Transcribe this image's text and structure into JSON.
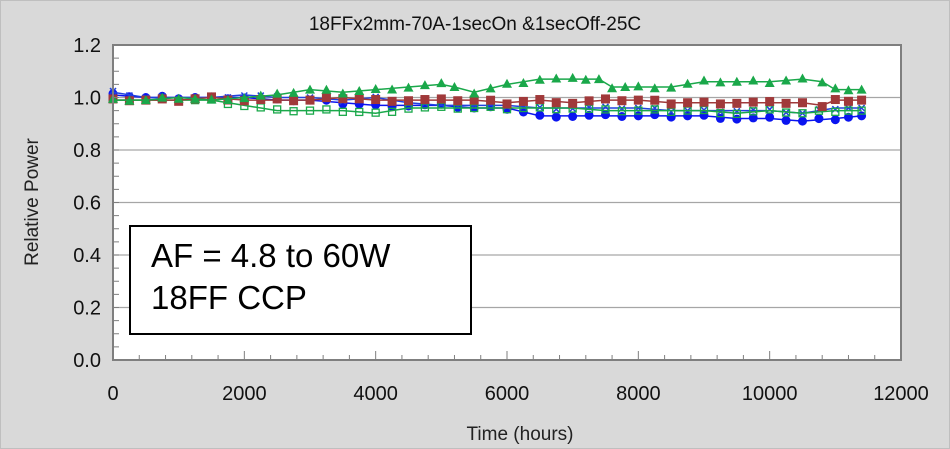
{
  "chart_data": {
    "type": "line",
    "title": "18FFx2mm-70A-1secOn &1secOff-25C",
    "xlabel": "Time (hours)",
    "ylabel": "Relative Power",
    "xlim": [
      0,
      12000
    ],
    "ylim": [
      0.0,
      1.2
    ],
    "x_ticks": [
      "0",
      "2000",
      "4000",
      "6000",
      "8000",
      "10000",
      "12000"
    ],
    "y_ticks": [
      "0.0",
      "0.2",
      "0.4",
      "0.6",
      "0.8",
      "1.0",
      "1.2"
    ],
    "grid": "horizontal",
    "legend": "none",
    "annotation": [
      "AF = 4.8 to 60W",
      "18FF CCP"
    ],
    "series": [
      {
        "name": "green-triangle",
        "color": "#1aa84a",
        "marker": "triangle",
        "x": [
          0,
          500,
          1000,
          1500,
          2000,
          2500,
          3000,
          3500,
          4000,
          4500,
          5000,
          5200,
          5500,
          6000,
          6500,
          7000,
          7400,
          7600,
          8000,
          8500,
          9000,
          9500,
          10000,
          10500,
          10800,
          11000,
          11400
        ],
        "values": [
          0.99,
          0.99,
          1.0,
          0.99,
          1.0,
          1.01,
          1.03,
          1.02,
          1.03,
          1.04,
          1.05,
          1.04,
          1.02,
          1.05,
          1.07,
          1.07,
          1.07,
          1.04,
          1.04,
          1.04,
          1.06,
          1.06,
          1.06,
          1.07,
          1.06,
          1.03,
          1.03
        ]
      },
      {
        "name": "brown-square",
        "color": "#a0393a",
        "marker": "square",
        "x": [
          0,
          500,
          1000,
          1500,
          2000,
          2500,
          3000,
          3500,
          4000,
          4500,
          5000,
          5500,
          6000,
          6500,
          7000,
          7500,
          8000,
          8500,
          9000,
          9500,
          10000,
          10500,
          10800,
          11000,
          11400
        ],
        "values": [
          0.99,
          0.99,
          0.99,
          1.0,
          0.99,
          0.99,
          0.99,
          1.0,
          0.99,
          0.99,
          0.99,
          0.99,
          0.98,
          0.99,
          0.98,
          0.99,
          0.99,
          0.98,
          0.98,
          0.98,
          0.98,
          0.98,
          0.97,
          0.99,
          0.99
        ]
      },
      {
        "name": "green-open-square",
        "color": "#1aa84a",
        "marker": "open-square",
        "x": [
          0,
          500,
          1000,
          1500,
          2000,
          2500,
          3000,
          3500,
          4000,
          4500,
          5000,
          5500,
          6000,
          6500,
          7000,
          7500,
          8000,
          8500,
          9000,
          9500,
          10000,
          10500,
          11000,
          11400
        ],
        "values": [
          0.99,
          0.99,
          0.99,
          0.99,
          0.97,
          0.95,
          0.95,
          0.95,
          0.94,
          0.96,
          0.96,
          0.96,
          0.96,
          0.96,
          0.96,
          0.95,
          0.95,
          0.95,
          0.95,
          0.94,
          0.95,
          0.94,
          0.95,
          0.95
        ]
      },
      {
        "name": "blue-circle",
        "color": "#0a14f0",
        "marker": "circle",
        "x": [
          0,
          500,
          1000,
          1500,
          2000,
          2500,
          3000,
          3500,
          4000,
          4500,
          5000,
          5500,
          6000,
          6500,
          7000,
          7500,
          8000,
          8500,
          9000,
          9500,
          10000,
          10500,
          11000,
          11400
        ],
        "values": [
          1.01,
          1.0,
          1.0,
          1.0,
          1.0,
          0.99,
          0.99,
          0.98,
          0.97,
          0.97,
          0.97,
          0.96,
          0.96,
          0.93,
          0.93,
          0.93,
          0.93,
          0.93,
          0.93,
          0.92,
          0.92,
          0.91,
          0.92,
          0.93
        ]
      },
      {
        "name": "blue-cross",
        "color": "#2040e0",
        "marker": "x",
        "x": [
          0,
          500,
          1000,
          1500,
          2000,
          2500,
          3000,
          3500,
          4000,
          4500,
          5000,
          5500,
          6000,
          6500,
          7000,
          7500,
          8000,
          8500,
          9000,
          9500,
          10000,
          10500,
          11000,
          11400
        ],
        "values": [
          1.02,
          1.0,
          1.0,
          1.0,
          1.01,
          1.0,
          1.0,
          0.99,
          1.0,
          0.98,
          0.97,
          0.97,
          0.97,
          0.96,
          0.96,
          0.96,
          0.96,
          0.95,
          0.95,
          0.95,
          0.95,
          0.94,
          0.96,
          0.96
        ]
      }
    ]
  }
}
